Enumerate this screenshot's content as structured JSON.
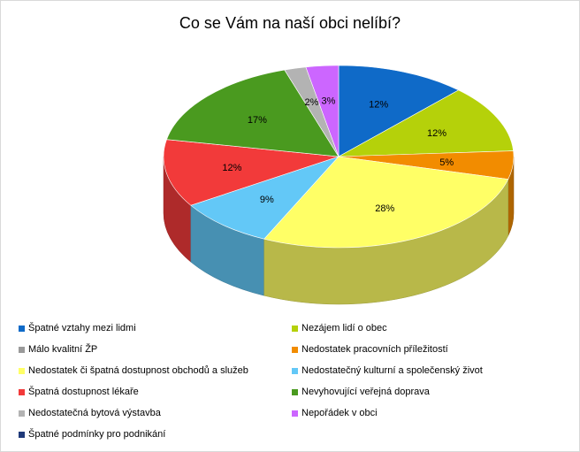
{
  "chart_data": {
    "type": "pie",
    "title": "Co se Vám na naší obci nelíbí?",
    "slices": [
      {
        "label": "Špatné vztahy mezi lidmi",
        "value": 12,
        "display": "12%",
        "color": "#0f6ac8"
      },
      {
        "label": "Nezájem lidí o obec",
        "value": 12,
        "display": "12%",
        "color": "#b5d10a"
      },
      {
        "label": "Málo kvalitní ŽP",
        "value": 0,
        "display": "",
        "color": "#9a9a9a"
      },
      {
        "label": "Nedostatek pracovních příležitostí",
        "value": 5,
        "display": "5%",
        "color": "#f28c00"
      },
      {
        "label": "Nedostatek či špatná dostupnost obchodů a služeb",
        "value": 28,
        "display": "28%",
        "color": "#ffff66"
      },
      {
        "label": "Nedostatečný kulturní a společenský život",
        "value": 9,
        "display": "9%",
        "color": "#63c8f7"
      },
      {
        "label": "Špatná dostupnost lékaře",
        "value": 12,
        "display": "12%",
        "color": "#f23a3a"
      },
      {
        "label": "Nevyhovující veřejná doprava",
        "value": 17,
        "display": "17%",
        "color": "#4a9a1f"
      },
      {
        "label": "Nedostatečná bytová výstavba",
        "value": 2,
        "display": "2%",
        "color": "#b3b3b3"
      },
      {
        "label": "Nepořádek v obci",
        "value": 3,
        "display": "3%",
        "color": "#cc66ff"
      },
      {
        "label": "Špatné podmínky pro podnikání",
        "value": 0,
        "display": "",
        "color": "#1f3a7a"
      }
    ],
    "legend_position": "bottom"
  }
}
